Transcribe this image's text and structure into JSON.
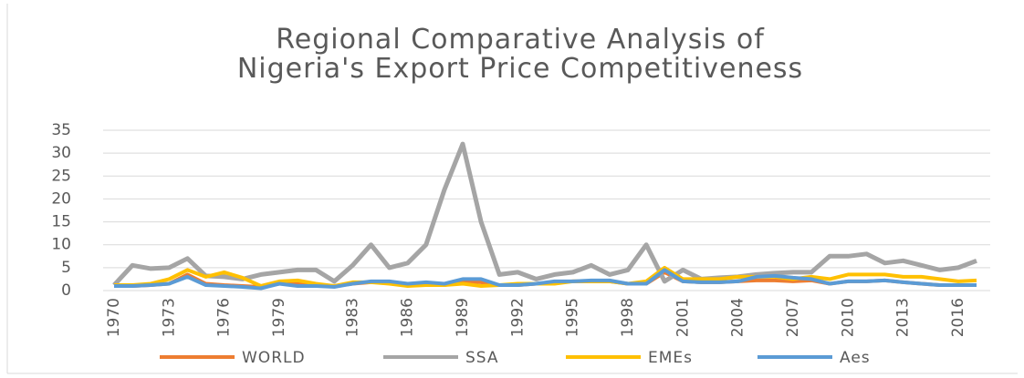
{
  "chart_data": {
    "type": "line",
    "title": "Regional Comparative Analysis of Nigeria's Export Price Competitiveness",
    "x": [
      1970,
      1971,
      1972,
      1973,
      1974,
      1975,
      1976,
      1977,
      1978,
      1979,
      1980,
      1981,
      1982,
      1983,
      1984,
      1985,
      1986,
      1987,
      1988,
      1989,
      1990,
      1991,
      1992,
      1993,
      1994,
      1995,
      1996,
      1997,
      1998,
      1999,
      2000,
      2001,
      2002,
      2003,
      2004,
      2005,
      2006,
      2007,
      2008,
      2009,
      2010,
      2011,
      2012,
      2013,
      2014,
      2015,
      2016,
      2017
    ],
    "xlim": [
      1970,
      2017
    ],
    "xticks": [
      1970,
      1973,
      1976,
      1979,
      1983,
      1986,
      1989,
      1992,
      1995,
      1998,
      2001,
      2004,
      2007,
      2010,
      2013,
      2016
    ],
    "ylim": [
      0,
      35
    ],
    "yticks": [
      0,
      5,
      10,
      15,
      20,
      25,
      30,
      35
    ],
    "grid": true,
    "legend": "bottom",
    "series": [
      {
        "name": "WORLD",
        "color": "#ed7d31",
        "values": [
          1.0,
          1.0,
          1.2,
          1.5,
          3.5,
          1.5,
          1.2,
          1.0,
          0.8,
          1.5,
          1.5,
          1.2,
          1.0,
          1.5,
          1.8,
          1.8,
          1.2,
          1.5,
          1.2,
          2.0,
          1.8,
          1.2,
          1.2,
          1.5,
          1.8,
          2.0,
          2.0,
          2.0,
          1.5,
          1.5,
          4.0,
          2.0,
          1.8,
          1.8,
          2.0,
          2.2,
          2.2,
          2.0,
          2.2,
          1.5,
          2.0,
          2.0,
          2.2,
          1.8,
          1.5,
          1.2,
          1.2,
          1.2
        ]
      },
      {
        "name": "SSA",
        "color": "#a5a5a5",
        "values": [
          1.2,
          5.5,
          4.8,
          5.0,
          7.0,
          3.2,
          3.0,
          2.5,
          3.5,
          4.0,
          4.5,
          4.5,
          2.0,
          5.5,
          10.0,
          5.0,
          6.0,
          10.0,
          22.0,
          32.0,
          15.0,
          3.5,
          4.0,
          2.5,
          3.5,
          4.0,
          5.5,
          3.5,
          4.5,
          10.0,
          2.0,
          4.5,
          2.5,
          2.8,
          3.0,
          3.5,
          3.8,
          4.0,
          4.0,
          7.5,
          7.5,
          8.0,
          6.0,
          6.5,
          5.5,
          4.5,
          5.0,
          6.5
        ]
      },
      {
        "name": "EMEs",
        "color": "#ffc000",
        "values": [
          1.2,
          1.2,
          1.5,
          2.5,
          4.5,
          3.0,
          4.0,
          2.8,
          1.0,
          2.0,
          2.2,
          1.5,
          1.0,
          1.8,
          1.8,
          1.5,
          1.0,
          1.2,
          1.2,
          1.5,
          1.0,
          1.2,
          1.5,
          1.5,
          1.5,
          2.0,
          2.0,
          2.0,
          1.5,
          2.0,
          5.0,
          2.5,
          2.5,
          2.5,
          3.0,
          3.0,
          3.0,
          2.5,
          3.0,
          2.5,
          3.5,
          3.5,
          3.5,
          3.0,
          3.0,
          2.5,
          2.0,
          2.2
        ]
      },
      {
        "name": "Aes",
        "color": "#5b9bd5",
        "values": [
          1.0,
          1.0,
          1.2,
          1.5,
          3.0,
          1.2,
          1.0,
          0.8,
          0.5,
          1.5,
          1.0,
          1.0,
          0.8,
          1.5,
          2.0,
          2.0,
          1.5,
          1.8,
          1.5,
          2.5,
          2.5,
          1.2,
          1.2,
          1.5,
          2.0,
          2.0,
          2.2,
          2.2,
          1.5,
          1.5,
          4.5,
          2.0,
          1.8,
          1.8,
          2.0,
          3.0,
          3.2,
          2.8,
          2.5,
          1.5,
          2.0,
          2.0,
          2.2,
          1.8,
          1.5,
          1.2,
          1.2,
          1.2
        ]
      }
    ]
  }
}
